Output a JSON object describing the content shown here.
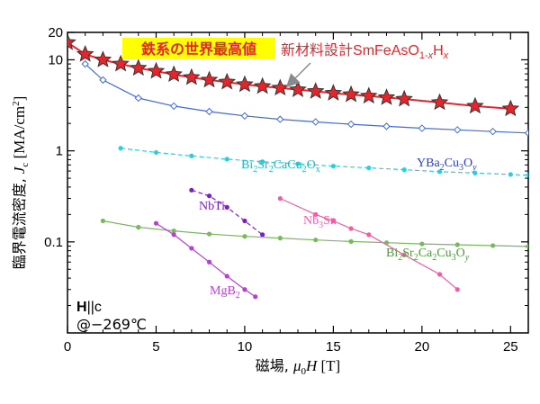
{
  "chart_data": {
    "type": "scatter",
    "x_scale": "linear",
    "y_scale": "log",
    "xlim": [
      0,
      26
    ],
    "ylim": [
      0.01,
      20
    ],
    "x_ticks": [
      0,
      5,
      10,
      15,
      20,
      25
    ],
    "y_ticks": [
      0.1,
      1,
      10,
      20
    ],
    "x_tick_labels": [
      "0",
      "5",
      "10",
      "15",
      "20",
      "25"
    ],
    "y_tick_labels": [
      "0.1",
      "1",
      "10",
      "20"
    ],
    "grid": false,
    "xlabel": "磁場, μ0H [T]",
    "ylabel": "臨界電流密度, Jc [MA/cm2]",
    "series": [
      {
        "name": "SmFeAsO1-xHx",
        "color": "#e8242b",
        "marker": "star",
        "line": "solid",
        "x": [
          0,
          1,
          2,
          3,
          4,
          5,
          6,
          7,
          8,
          9,
          10,
          11,
          12,
          13,
          14,
          15,
          16,
          17,
          18,
          19,
          21,
          23,
          25
        ],
        "y": [
          15.5,
          11.5,
          10,
          9,
          8.1,
          7.5,
          6.9,
          6.4,
          6.0,
          5.7,
          5.35,
          5.1,
          4.9,
          4.7,
          4.5,
          4.3,
          4.15,
          4.0,
          3.85,
          3.7,
          3.4,
          3.1,
          2.9
        ]
      },
      {
        "name": "YBa2Cu3Oy",
        "color": "#4169e1",
        "marker": "diamond",
        "line": "solid",
        "x": [
          1,
          2,
          4,
          6,
          8,
          10,
          12,
          14,
          16,
          18,
          20,
          22,
          24,
          26
        ],
        "y": [
          9.0,
          6.0,
          3.8,
          3.1,
          2.7,
          2.42,
          2.22,
          2.08,
          1.96,
          1.86,
          1.77,
          1.7,
          1.63,
          1.57
        ]
      },
      {
        "name": "Bi2Sr2CaCu2Ox",
        "color": "#27d0e0",
        "marker": "circle",
        "line": "dashed",
        "x": [
          3,
          5,
          7,
          9,
          11,
          13,
          15,
          17,
          19,
          21,
          23,
          25,
          26
        ],
        "y": [
          1.07,
          0.96,
          0.88,
          0.81,
          0.76,
          0.72,
          0.68,
          0.65,
          0.62,
          0.59,
          0.57,
          0.55,
          0.54
        ]
      },
      {
        "name": "NbTi",
        "color": "#7b1fc4",
        "marker": "circle",
        "line": "dashed",
        "x": [
          7,
          8,
          9,
          10,
          11
        ],
        "y": [
          0.37,
          0.32,
          0.24,
          0.17,
          0.12
        ]
      },
      {
        "name": "Nb3Sn",
        "color": "#f25ca2",
        "marker": "circle",
        "line": "solid",
        "x": [
          12,
          14,
          15,
          16,
          17,
          19,
          21,
          22
        ],
        "y": [
          0.3,
          0.2,
          0.17,
          0.14,
          0.12,
          0.072,
          0.044,
          0.03
        ]
      },
      {
        "name": "Bi2Sr2Ca2Cu3Oy",
        "color": "#7bb661",
        "marker": "circle",
        "line": "solid",
        "x": [
          2,
          4,
          6,
          8,
          10,
          12,
          14,
          16,
          18,
          20,
          22,
          24,
          26
        ],
        "y": [
          0.17,
          0.145,
          0.132,
          0.122,
          0.115,
          0.11,
          0.105,
          0.101,
          0.098,
          0.095,
          0.093,
          0.091,
          0.089
        ]
      },
      {
        "name": "MgB2",
        "color": "#b83ed6",
        "marker": "circle",
        "line": "solid",
        "x": [
          5,
          6,
          7,
          8,
          9,
          10,
          10.6
        ],
        "y": [
          0.16,
          0.12,
          0.085,
          0.06,
          0.042,
          0.03,
          0.025
        ]
      }
    ],
    "annotations": {
      "headline": "鉄系の世界最高値",
      "new_material_prefix": "新材料設計",
      "field_orientation": "H||c",
      "temperature": "@−269℃"
    }
  }
}
